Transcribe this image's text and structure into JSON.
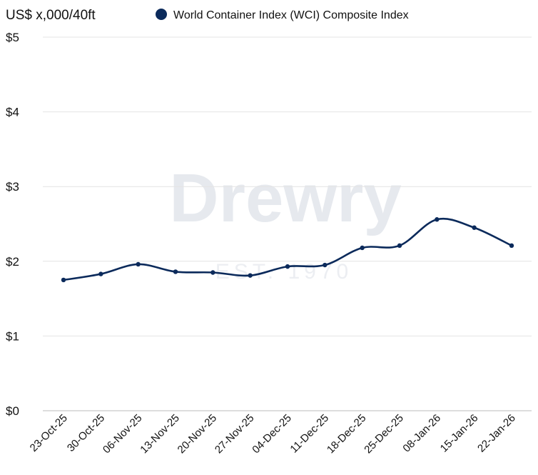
{
  "chart_data": {
    "type": "line",
    "ylabel": "US$ x,000/40ft",
    "legend": [
      {
        "name": "World Container Index (WCI) Composite Index",
        "color": "#0b2a5b"
      }
    ],
    "legend_placement": "top",
    "categories": [
      "23-Oct-25",
      "30-Oct-25",
      "06-Nov-25",
      "13-Nov-25",
      "20-Nov-25",
      "27-Nov-25",
      "04-Dec-25",
      "11-Dec-25",
      "18-Dec-25",
      "25-Dec-25",
      "08-Jan-26",
      "15-Jan-26",
      "22-Jan-26"
    ],
    "series": [
      {
        "name": "World Container Index (WCI) Composite Index",
        "values": [
          1.75,
          1.83,
          1.96,
          1.86,
          1.85,
          1.81,
          1.93,
          1.95,
          2.18,
          2.21,
          2.56,
          2.45,
          2.21
        ]
      }
    ],
    "yticks": [
      "$0",
      "$1",
      "$2",
      "$3",
      "$4",
      "$5"
    ],
    "ylim": [
      0,
      5
    ],
    "grid": true,
    "watermark": [
      "Drewry",
      "EST. 1970"
    ]
  }
}
